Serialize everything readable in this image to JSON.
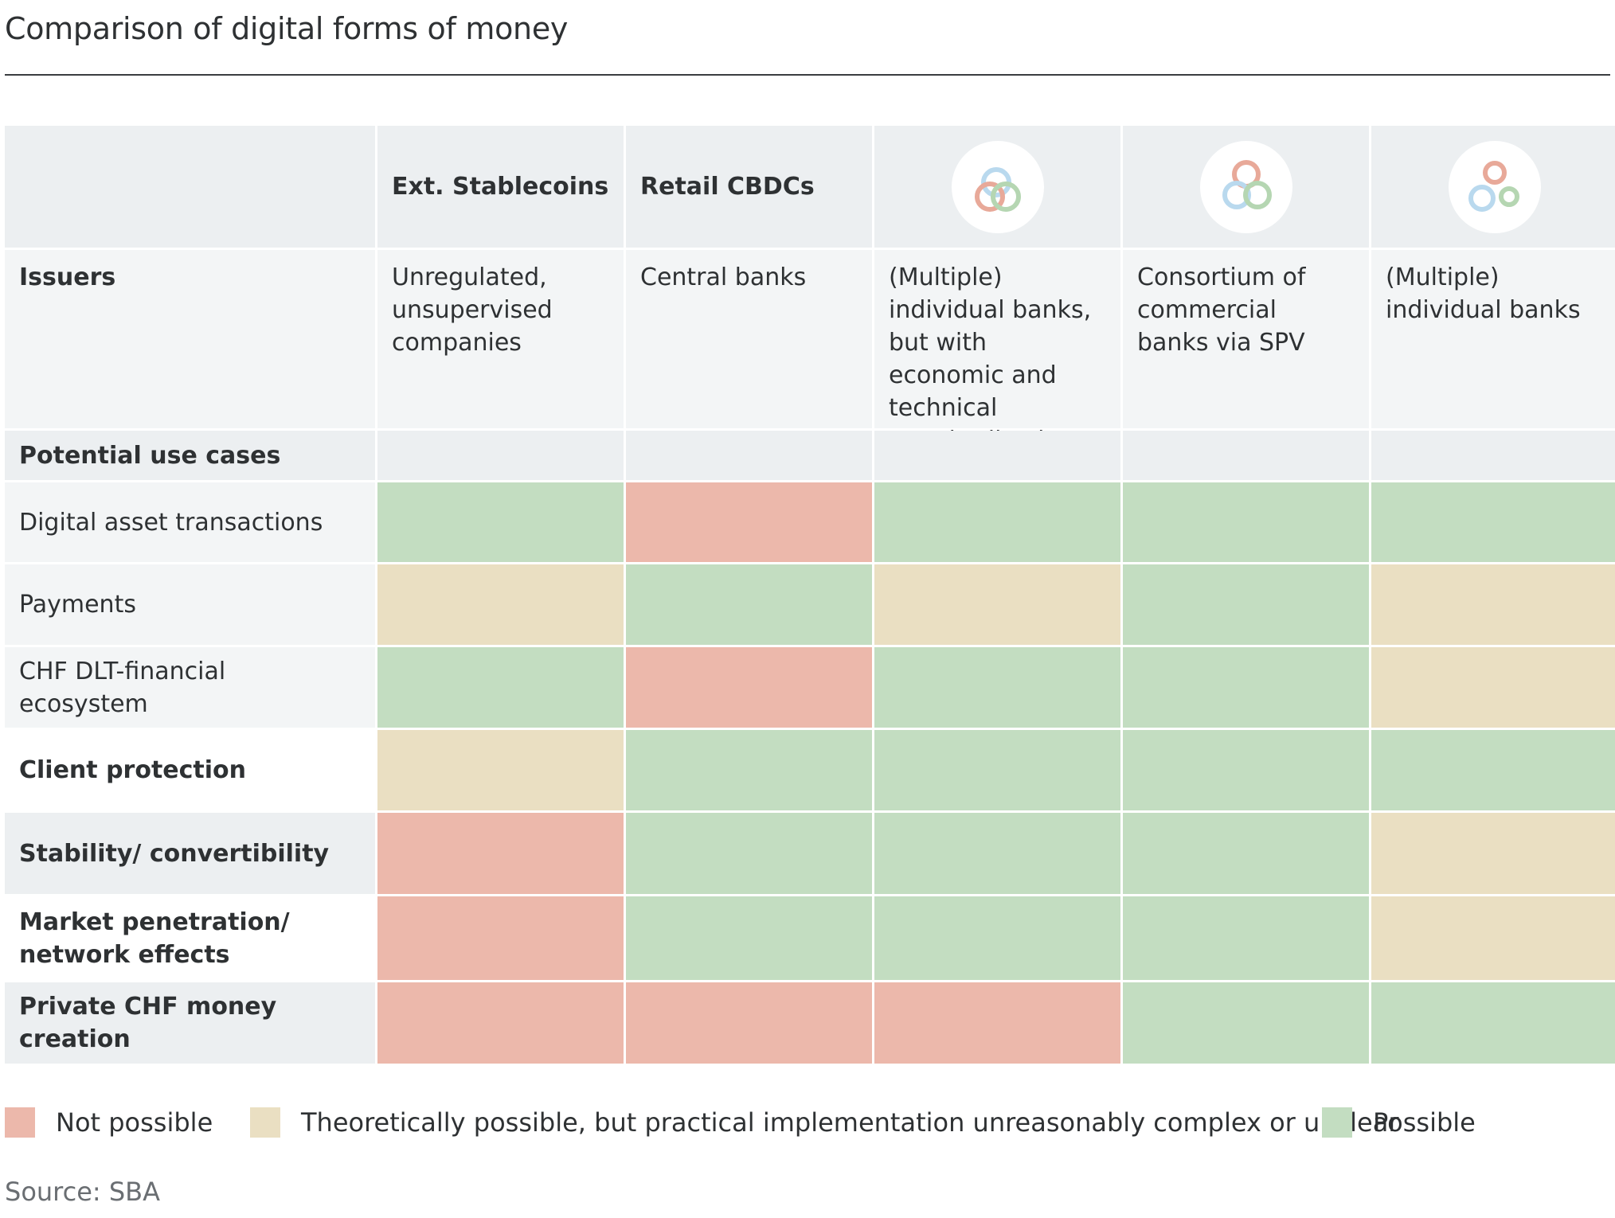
{
  "title": "Comparison of digital forms of money",
  "chart_data": {
    "type": "table",
    "columns": [
      {
        "label": "Ext. Stablecoins",
        "icon": ""
      },
      {
        "label": "Retail CBDCs",
        "icon": ""
      },
      {
        "label": "",
        "icon": "overlapping-rings-icon"
      },
      {
        "label": "",
        "icon": "linked-rings-icon"
      },
      {
        "label": "",
        "icon": "separate-rings-icon"
      }
    ],
    "issuers_label": "Issuers",
    "issuers": [
      "Unregulated, unsupervised companies",
      "Central banks",
      "(Multiple) individual banks, but with economic and technical standardisation",
      "Consortium of commercial banks via SPV",
      "(Multiple) individual banks"
    ],
    "use_cases_label": "Potential use cases",
    "rows": [
      {
        "label": "Digital asset transactions",
        "values": [
          "possible",
          "not_possible",
          "possible",
          "possible",
          "possible"
        ]
      },
      {
        "label": "Payments",
        "values": [
          "theoretical",
          "possible",
          "theoretical",
          "possible",
          "theoretical"
        ]
      },
      {
        "label": "CHF DLT-financial ecosystem",
        "values": [
          "possible",
          "not_possible",
          "possible",
          "possible",
          "theoretical"
        ]
      },
      {
        "label": "Client protection",
        "values": [
          "theoretical",
          "possible",
          "possible",
          "possible",
          "possible"
        ]
      },
      {
        "label": "Stability/ convertibility",
        "values": [
          "not_possible",
          "possible",
          "possible",
          "possible",
          "theoretical"
        ]
      },
      {
        "label": "Market penetration/ network effects",
        "values": [
          "not_possible",
          "possible",
          "possible",
          "possible",
          "theoretical"
        ]
      },
      {
        "label": "Private CHF money creation",
        "values": [
          "not_possible",
          "not_possible",
          "not_possible",
          "possible",
          "possible"
        ]
      }
    ],
    "legend": [
      {
        "key": "not_possible",
        "label": "Not possible",
        "color": "#ecb8ab"
      },
      {
        "key": "theoretical",
        "label": "Theoretically possible, but practical implementation unreasonably complex or unclear",
        "color": "#eadfc2"
      },
      {
        "key": "possible",
        "label": "Possible",
        "color": "#c3ddc1"
      }
    ]
  },
  "colors": {
    "ring_red": "#e8a999",
    "ring_blue": "#b9d9ee",
    "ring_green": "#b5d6b2"
  },
  "source": "Source: SBA"
}
